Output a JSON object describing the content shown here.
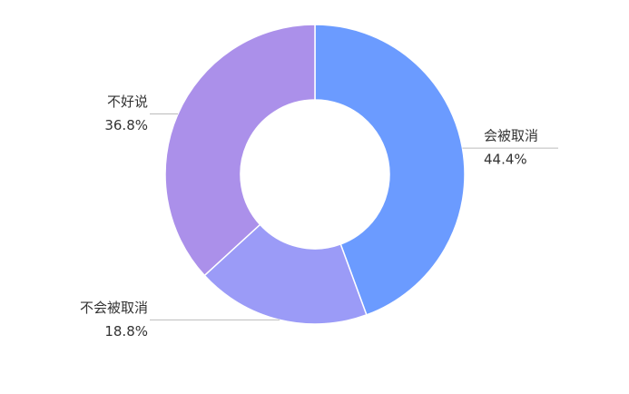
{
  "chart_data": {
    "type": "donut",
    "categories": [
      "会被取消",
      "不会被取消",
      "不好说"
    ],
    "values": [
      44.4,
      18.8,
      36.8
    ],
    "value_labels": [
      "44.4%",
      "18.8%",
      "36.8%"
    ],
    "colors": [
      "#6b9bff",
      "#9b9bf7",
      "#ab90ea"
    ]
  }
}
